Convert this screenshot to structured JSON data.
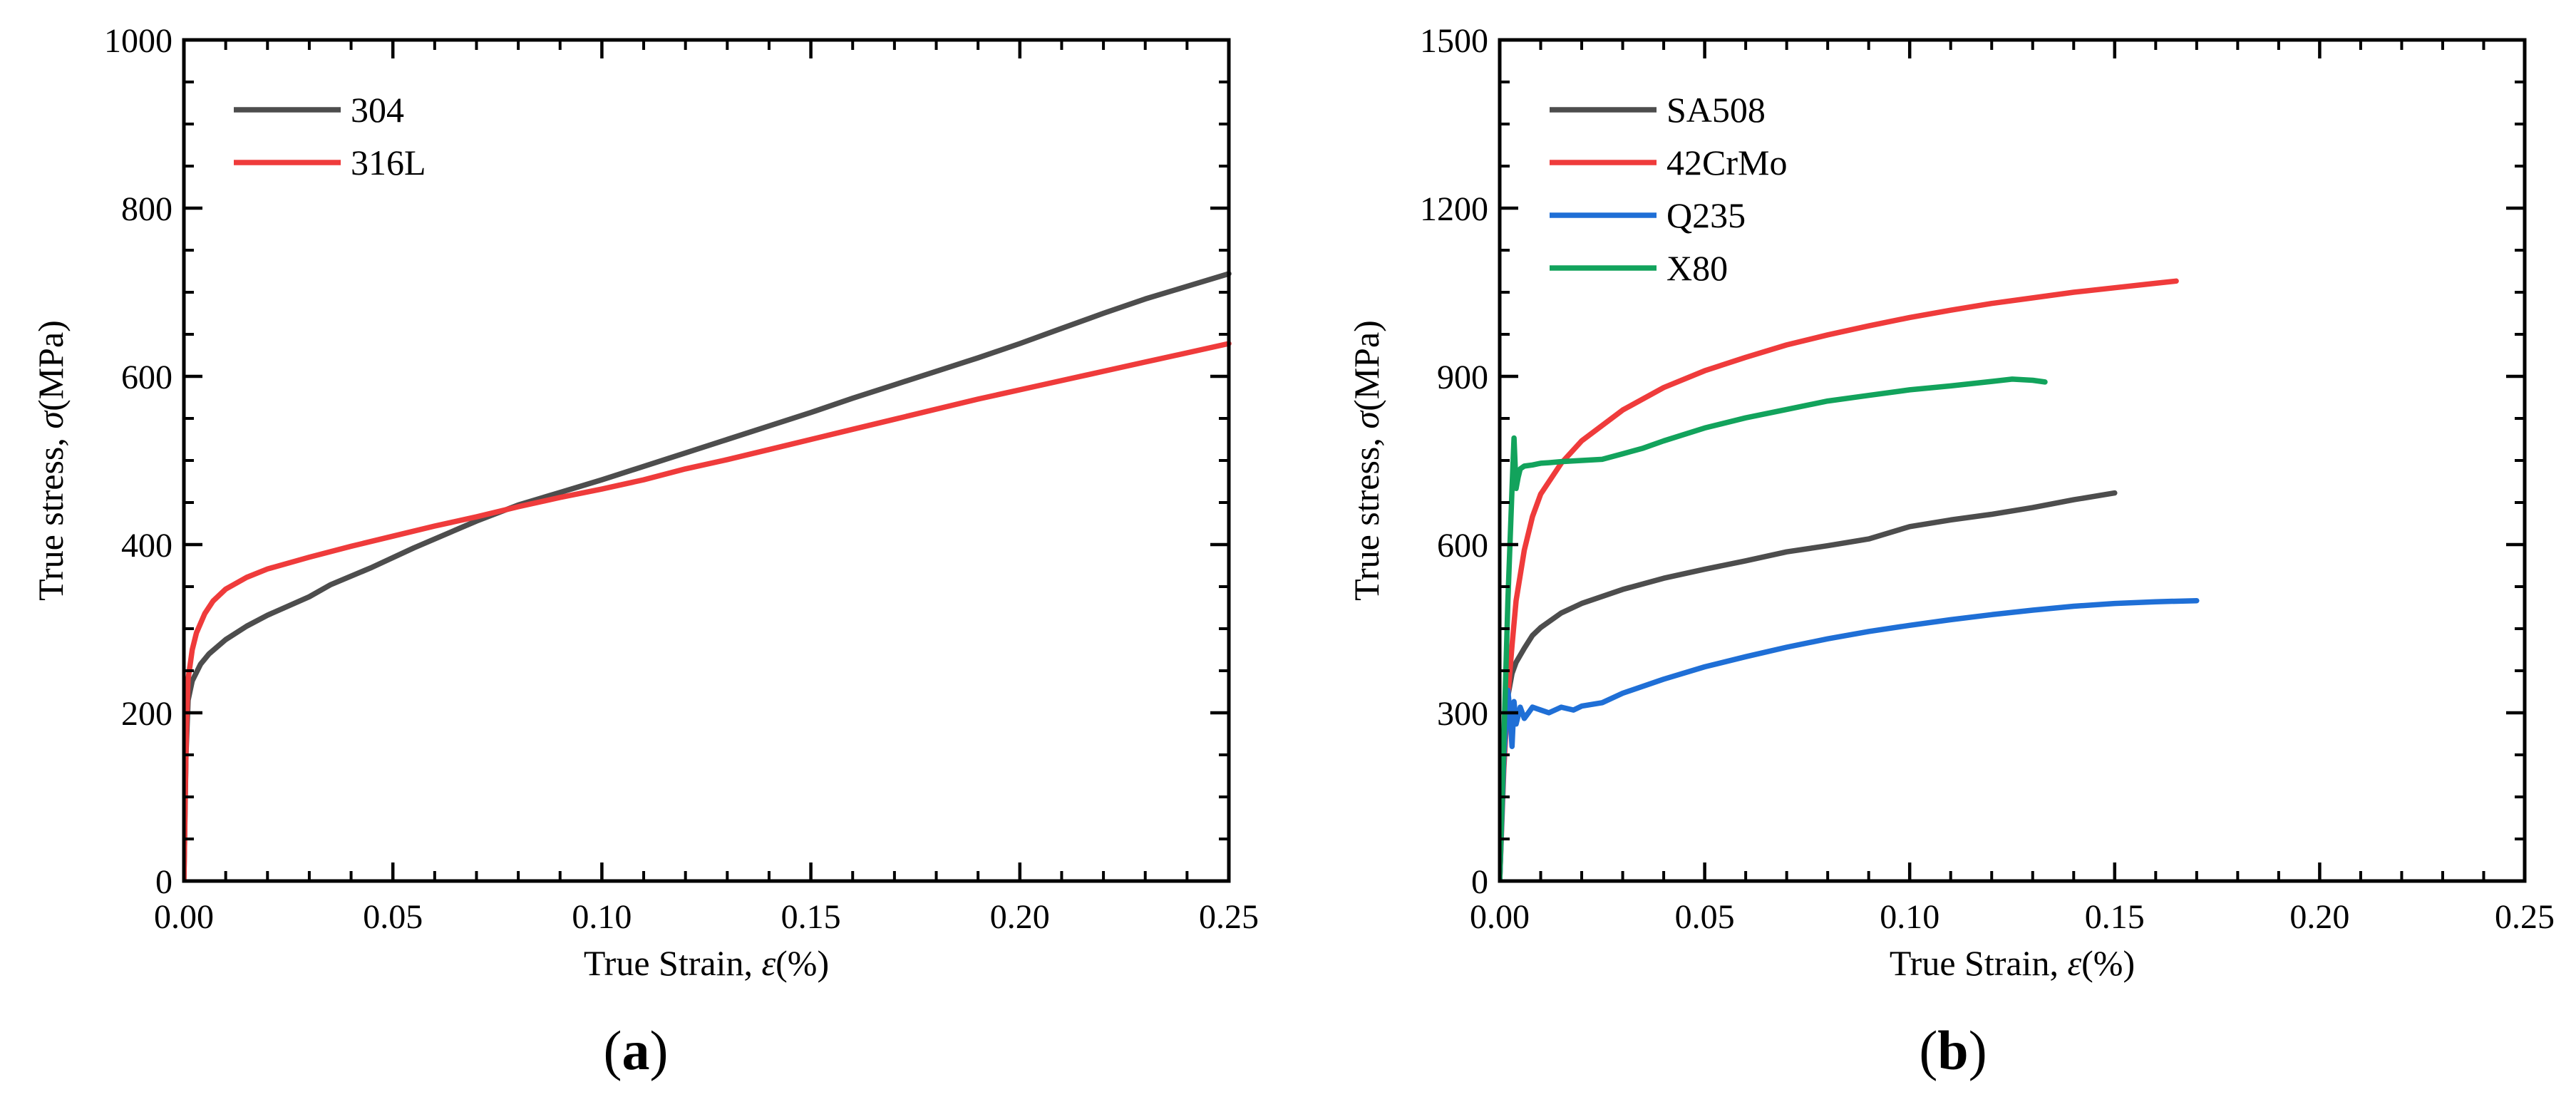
{
  "colors": {
    "gray": "#4d4d4d",
    "red": "#ef3b3b",
    "blue": "#1f6fd6",
    "green": "#12a35c",
    "axis": "#000000"
  },
  "chart_data": [
    {
      "type": "line",
      "panel_label_open": "(",
      "panel_label_letter": "a",
      "panel_label_close": ")",
      "xlabel_prefix": "True Strain, ",
      "xlabel_symbol": "ε",
      "xlabel_suffix": "(%)",
      "ylabel_prefix": "True stress, ",
      "ylabel_symbol": "σ",
      "ylabel_suffix": "(MPa)",
      "xlim": [
        0,
        0.25
      ],
      "ylim": [
        0,
        1000
      ],
      "xticks": [
        0,
        0.05,
        0.1,
        0.15,
        0.2,
        0.25
      ],
      "xtick_labels": [
        "0.00",
        "0.05",
        "0.10",
        "0.15",
        "0.20",
        "0.25"
      ],
      "yticks": [
        0,
        200,
        400,
        600,
        800,
        1000
      ],
      "ytick_labels": [
        "0",
        "200",
        "400",
        "600",
        "800",
        "1000"
      ],
      "legend_position": "top-left",
      "series": [
        {
          "name": "304",
          "color": "#4d4d4d",
          "x": [
            0,
            0.0005,
            0.001,
            0.002,
            0.004,
            0.006,
            0.01,
            0.015,
            0.02,
            0.03,
            0.035,
            0.045,
            0.055,
            0.07,
            0.08,
            0.09,
            0.1,
            0.11,
            0.12,
            0.13,
            0.14,
            0.15,
            0.16,
            0.17,
            0.18,
            0.19,
            0.2,
            0.21,
            0.22,
            0.23,
            0.24,
            0.25
          ],
          "y": [
            0,
            150,
            215,
            238,
            258,
            270,
            287,
            303,
            316,
            338,
            352,
            373,
            396,
            428,
            447,
            462,
            477,
            493,
            509,
            525,
            541,
            557,
            574,
            590,
            606,
            622,
            639,
            657,
            675,
            692,
            707,
            722
          ]
        },
        {
          "name": "316L",
          "color": "#ef3b3b",
          "x": [
            0,
            0.0003,
            0.0006,
            0.001,
            0.002,
            0.003,
            0.005,
            0.007,
            0.01,
            0.015,
            0.02,
            0.03,
            0.04,
            0.05,
            0.06,
            0.07,
            0.08,
            0.09,
            0.1,
            0.11,
            0.12,
            0.13,
            0.14,
            0.15,
            0.16,
            0.17,
            0.18,
            0.19,
            0.2,
            0.21,
            0.22,
            0.23,
            0.24,
            0.25
          ],
          "y": [
            0,
            100,
            180,
            240,
            275,
            295,
            318,
            333,
            347,
            361,
            371,
            385,
            398,
            410,
            422,
            433,
            445,
            456,
            466,
            477,
            490,
            501,
            513,
            525,
            537,
            549,
            561,
            573,
            584,
            595,
            606,
            617,
            628,
            639
          ]
        }
      ]
    },
    {
      "type": "line",
      "panel_label_open": "(",
      "panel_label_letter": "b",
      "panel_label_close": ")",
      "xlabel_prefix": "True Strain, ",
      "xlabel_symbol": "ε",
      "xlabel_suffix": "(%)",
      "ylabel_prefix": "True stress, ",
      "ylabel_symbol": "σ",
      "ylabel_suffix": "(MPa)",
      "xlim": [
        0,
        0.25
      ],
      "ylim": [
        0,
        1500
      ],
      "xticks": [
        0,
        0.05,
        0.1,
        0.15,
        0.2,
        0.25
      ],
      "xtick_labels": [
        "0.00",
        "0.05",
        "0.10",
        "0.15",
        "0.20",
        "0.25"
      ],
      "yticks": [
        0,
        300,
        600,
        900,
        1200,
        1500
      ],
      "ytick_labels": [
        "0",
        "300",
        "600",
        "900",
        "1200",
        "1500"
      ],
      "legend_position": "top-left",
      "series": [
        {
          "name": "SA508",
          "color": "#4d4d4d",
          "x": [
            0,
            0.001,
            0.002,
            0.003,
            0.004,
            0.006,
            0.008,
            0.01,
            0.015,
            0.02,
            0.03,
            0.04,
            0.05,
            0.06,
            0.07,
            0.08,
            0.09,
            0.1,
            0.11,
            0.12,
            0.13,
            0.14,
            0.15
          ],
          "y": [
            0,
            230,
            330,
            370,
            390,
            415,
            438,
            452,
            478,
            495,
            520,
            540,
            556,
            571,
            587,
            598,
            610,
            632,
            644,
            654,
            666,
            680,
            692
          ]
        },
        {
          "name": "42CrMo",
          "color": "#ef3b3b",
          "x": [
            0,
            0.001,
            0.002,
            0.003,
            0.004,
            0.006,
            0.008,
            0.01,
            0.015,
            0.02,
            0.03,
            0.04,
            0.05,
            0.06,
            0.07,
            0.08,
            0.09,
            0.1,
            0.11,
            0.12,
            0.13,
            0.14,
            0.15,
            0.16,
            0.165
          ],
          "y": [
            0,
            200,
            330,
            420,
            500,
            590,
            650,
            690,
            745,
            785,
            840,
            880,
            910,
            934,
            956,
            974,
            990,
            1005,
            1018,
            1030,
            1040,
            1050,
            1058,
            1066,
            1070
          ]
        },
        {
          "name": "Q235",
          "color": "#1f6fd6",
          "x": [
            0,
            0.001,
            0.002,
            0.0025,
            0.003,
            0.0035,
            0.004,
            0.005,
            0.006,
            0.007,
            0.008,
            0.01,
            0.012,
            0.015,
            0.018,
            0.02,
            0.025,
            0.03,
            0.04,
            0.05,
            0.06,
            0.07,
            0.08,
            0.09,
            0.1,
            0.11,
            0.12,
            0.13,
            0.14,
            0.15,
            0.16,
            0.17
          ],
          "y": [
            0,
            220,
            340,
            300,
            240,
            320,
            280,
            310,
            290,
            300,
            310,
            305,
            300,
            310,
            305,
            312,
            318,
            335,
            360,
            382,
            400,
            417,
            432,
            445,
            456,
            466,
            475,
            483,
            490,
            495,
            498,
            500
          ]
        },
        {
          "name": "X80",
          "color": "#12a35c",
          "x": [
            0,
            0.001,
            0.002,
            0.003,
            0.0035,
            0.004,
            0.0045,
            0.005,
            0.006,
            0.008,
            0.01,
            0.012,
            0.015,
            0.02,
            0.025,
            0.03,
            0.035,
            0.04,
            0.05,
            0.06,
            0.07,
            0.08,
            0.09,
            0.1,
            0.11,
            0.12,
            0.125,
            0.13,
            0.133
          ],
          "y": [
            0,
            250,
            500,
            700,
            790,
            700,
            720,
            735,
            740,
            742,
            745,
            746,
            748,
            750,
            752,
            762,
            772,
            785,
            808,
            826,
            841,
            856,
            866,
            876,
            883,
            891,
            895,
            893,
            890
          ]
        }
      ]
    }
  ]
}
